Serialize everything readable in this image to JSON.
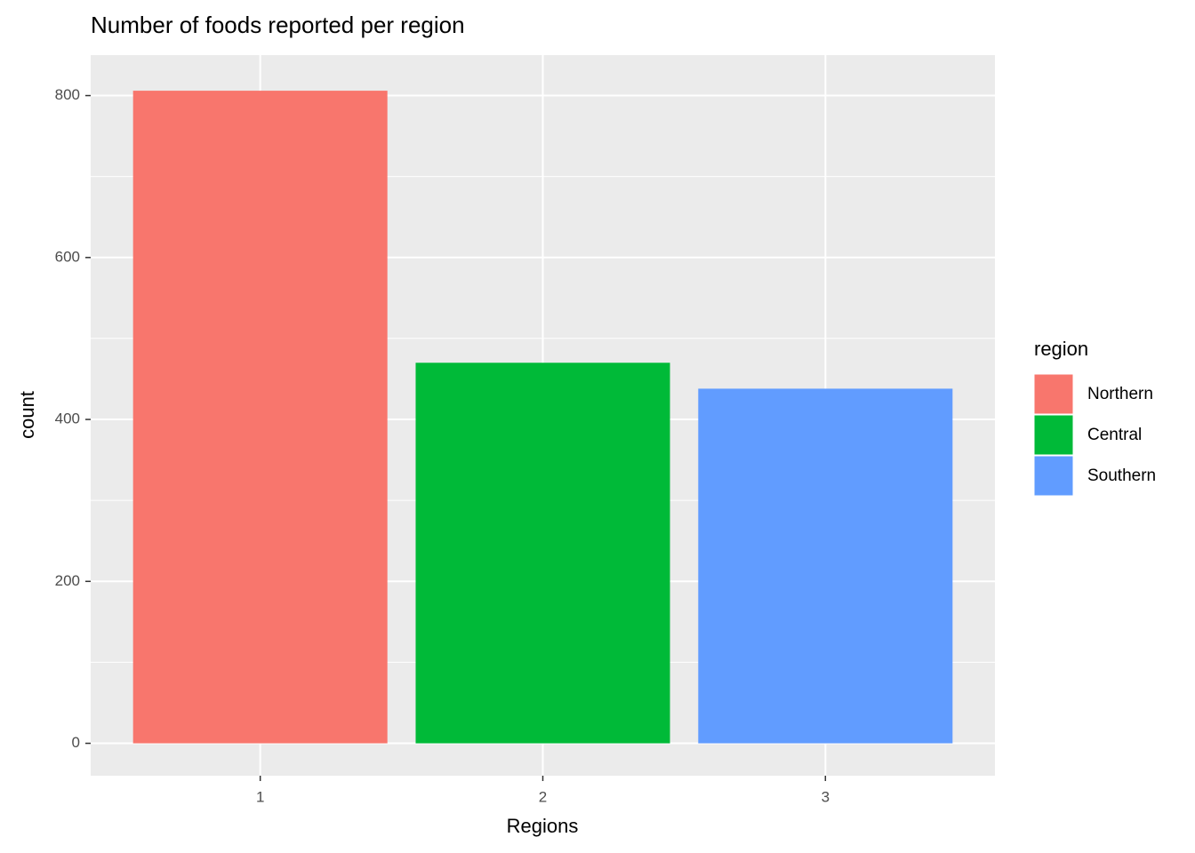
{
  "chart_data": {
    "type": "bar",
    "title": "Number of foods reported per region",
    "x_label": "Regions",
    "y_label": "count",
    "categories": [
      "1",
      "2",
      "3"
    ],
    "values": [
      806,
      470,
      438
    ],
    "colors": [
      "#F8766D",
      "#00BA38",
      "#619CFF"
    ],
    "ylim": [
      -40,
      850
    ],
    "yticks": [
      0,
      200,
      400,
      600,
      800
    ],
    "minor_yticks": [
      100,
      300,
      500,
      700
    ],
    "grid": true,
    "legend_position": "right",
    "legend": {
      "title": "region",
      "labels": [
        "Northern",
        "Central",
        "Southern"
      ]
    }
  }
}
